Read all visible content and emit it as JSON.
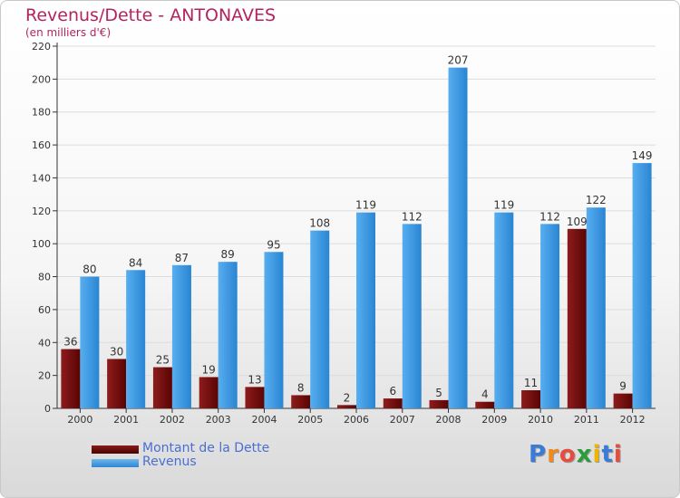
{
  "title": "Revenus/Dette - ANTONAVES",
  "subtitle": "(en milliers d'€)",
  "legend": [
    {
      "label": "Montant de la Dette",
      "color": "#6e0a0a"
    },
    {
      "label": "Revenus",
      "color": "#3a97de"
    }
  ],
  "logo": {
    "text": "Proxiti",
    "letters": [
      "P",
      "r",
      "o",
      "x",
      "i",
      "t",
      "i"
    ],
    "colors": [
      "#3a7bd5",
      "#f08a1c",
      "#e74c3c",
      "#2a9d3a",
      "#f0b400",
      "#3a7bd5",
      "#e74c3c"
    ]
  },
  "colors": {
    "dette": "#6e0a0a",
    "revenus": "#3a97de",
    "grid": "#dcdcdc",
    "axis": "#333333"
  },
  "chart_data": {
    "type": "bar",
    "categories": [
      "2000",
      "2001",
      "2002",
      "2003",
      "2004",
      "2005",
      "2006",
      "2007",
      "2008",
      "2009",
      "2010",
      "2011",
      "2012"
    ],
    "series": [
      {
        "name": "Montant de la Dette",
        "values": [
          36,
          30,
          25,
          19,
          13,
          8,
          2,
          6,
          5,
          4,
          11,
          109,
          9
        ]
      },
      {
        "name": "Revenus",
        "values": [
          80,
          84,
          87,
          89,
          95,
          108,
          119,
          112,
          207,
          119,
          112,
          122,
          149
        ]
      }
    ],
    "ylim": [
      0,
      220
    ],
    "yticks": [
      0,
      20,
      40,
      60,
      80,
      100,
      120,
      140,
      160,
      180,
      200,
      220
    ],
    "grid": true,
    "legend_position": "bottom-left"
  }
}
